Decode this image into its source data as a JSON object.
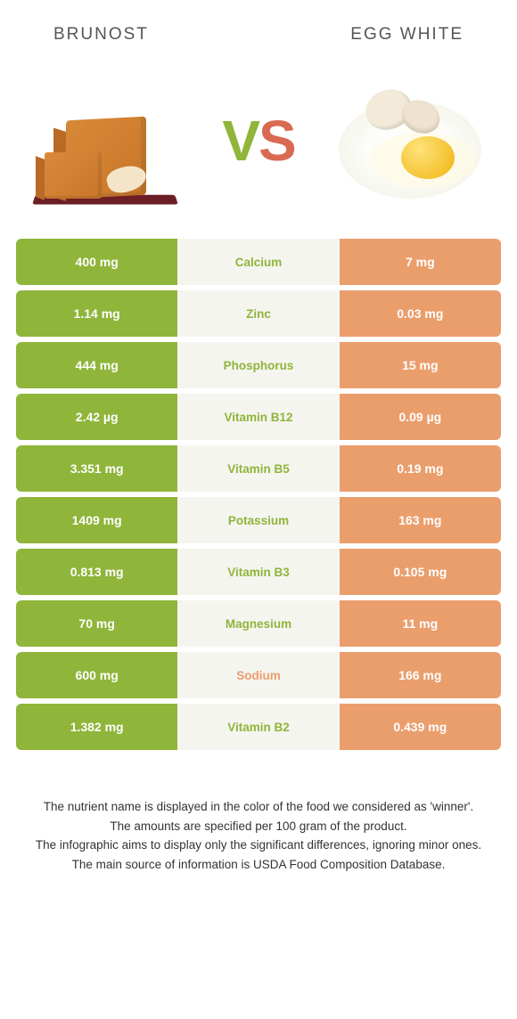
{
  "colors": {
    "left": "#8fb53a",
    "right": "#ea9e6c",
    "mid_bg": "#f5f5f0",
    "text_white": "#ffffff"
  },
  "header": {
    "left_title": "BRUNOST",
    "right_title": "EGG WHITE"
  },
  "vs": {
    "v": "V",
    "s": "S"
  },
  "rows": [
    {
      "nutrient": "Calcium",
      "left": "400 mg",
      "right": "7 mg",
      "winner": "left"
    },
    {
      "nutrient": "Zinc",
      "left": "1.14 mg",
      "right": "0.03 mg",
      "winner": "left"
    },
    {
      "nutrient": "Phosphorus",
      "left": "444 mg",
      "right": "15 mg",
      "winner": "left"
    },
    {
      "nutrient": "Vitamin B12",
      "left": "2.42 µg",
      "right": "0.09 µg",
      "winner": "left"
    },
    {
      "nutrient": "Vitamin B5",
      "left": "3.351 mg",
      "right": "0.19 mg",
      "winner": "left"
    },
    {
      "nutrient": "Potassium",
      "left": "1409 mg",
      "right": "163 mg",
      "winner": "left"
    },
    {
      "nutrient": "Vitamin B3",
      "left": "0.813 mg",
      "right": "0.105 mg",
      "winner": "left"
    },
    {
      "nutrient": "Magnesium",
      "left": "70 mg",
      "right": "11 mg",
      "winner": "left"
    },
    {
      "nutrient": "Sodium",
      "left": "600 mg",
      "right": "166 mg",
      "winner": "right"
    },
    {
      "nutrient": "Vitamin B2",
      "left": "1.382 mg",
      "right": "0.439 mg",
      "winner": "left"
    }
  ],
  "footnotes": [
    "The nutrient name is displayed in the color of the food we considered as 'winner'.",
    "The amounts are specified per 100 gram of the product.",
    "The infographic aims to display only the significant differences, ignoring minor ones.",
    "The main source of information is USDA Food Composition Database."
  ]
}
